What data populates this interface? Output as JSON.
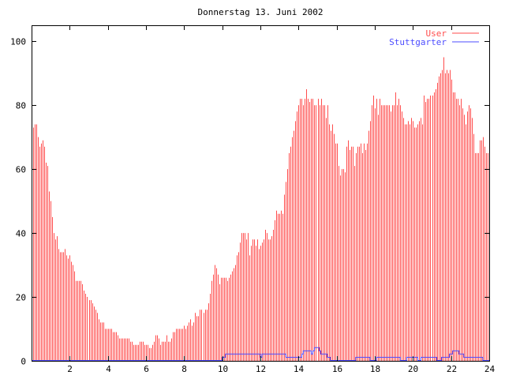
{
  "chart_data": {
    "type": "bar",
    "title": "Donnerstag 13. Juni 2002",
    "xlabel": "",
    "ylabel": "",
    "xlim": [
      0,
      24
    ],
    "ylim": [
      0,
      105
    ],
    "x_step_hours": 0.08333,
    "xticks": [
      2,
      4,
      6,
      8,
      10,
      12,
      14,
      16,
      18,
      20,
      22,
      24
    ],
    "yticks": [
      0,
      20,
      40,
      60,
      80,
      100
    ],
    "legend_position": "top-right",
    "series": [
      {
        "name": "User",
        "style": "impulses",
        "color": "#ff4d4d",
        "values": [
          72,
          73,
          74,
          74,
          70,
          67,
          68,
          69,
          67,
          62,
          61,
          53,
          50,
          45,
          40,
          38,
          39,
          35,
          34,
          34,
          34,
          35,
          33,
          32,
          33,
          31,
          30,
          28,
          25,
          25,
          25,
          25,
          24,
          22,
          21,
          20,
          19,
          19,
          18,
          17,
          16,
          15,
          13,
          12,
          12,
          12,
          10,
          10,
          10,
          10,
          10,
          9,
          9,
          9,
          8,
          7,
          7,
          7,
          7,
          7,
          7,
          7,
          6,
          6,
          5,
          5,
          5,
          5,
          6,
          6,
          6,
          5,
          5,
          5,
          4,
          4,
          5,
          6,
          8,
          8,
          7,
          5,
          6,
          6,
          6,
          8,
          6,
          6,
          7,
          9,
          9,
          10,
          10,
          10,
          10,
          10,
          11,
          10,
          11,
          12,
          13,
          11,
          12,
          15,
          14,
          14,
          16,
          16,
          15,
          16,
          16,
          18,
          21,
          25,
          27,
          30,
          29,
          27,
          24,
          26,
          26,
          26,
          26,
          25,
          26,
          27,
          28,
          29,
          30,
          33,
          34,
          37,
          40,
          40,
          40,
          38,
          40,
          33,
          36,
          38,
          38,
          36,
          38,
          35,
          36,
          37,
          38,
          41,
          40,
          38,
          38,
          39,
          41,
          44,
          47,
          46,
          46,
          47,
          46,
          52,
          56,
          60,
          65,
          67,
          70,
          72,
          75,
          78,
          80,
          82,
          82,
          80,
          82,
          85,
          82,
          81,
          82,
          82,
          80,
          80,
          82,
          80,
          82,
          80,
          80,
          76,
          80,
          74,
          72,
          74,
          71,
          68,
          68,
          61,
          58,
          60,
          60,
          59,
          67,
          69,
          66,
          67,
          67,
          61,
          65,
          67,
          67,
          68,
          65,
          68,
          66,
          68,
          72,
          75,
          80,
          83,
          79,
          82,
          77,
          82,
          80,
          80,
          80,
          80,
          80,
          80,
          78,
          80,
          80,
          84,
          80,
          82,
          80,
          78,
          76,
          74,
          74,
          75,
          74,
          76,
          75,
          73,
          73,
          74,
          75,
          76,
          74,
          83,
          81,
          82,
          82,
          83,
          83,
          84,
          85,
          87,
          89,
          90,
          91,
          95,
          90,
          91,
          90,
          91,
          88,
          84,
          84,
          82,
          82,
          80,
          82,
          79,
          77,
          74,
          78,
          80,
          79,
          76,
          71,
          65,
          65,
          65,
          69,
          69,
          70,
          67,
          65,
          65
        ]
      },
      {
        "name": "Stuttgarter",
        "style": "steps",
        "color": "#4d4dff",
        "values": [
          0,
          0,
          0,
          0,
          0,
          0,
          0,
          0,
          0,
          0,
          0,
          0,
          0,
          0,
          0,
          0,
          0,
          0,
          0,
          0,
          0,
          0,
          0,
          0,
          0,
          0,
          0,
          0,
          0,
          0,
          0,
          0,
          0,
          0,
          0,
          0,
          0,
          0,
          0,
          0,
          0,
          0,
          0,
          0,
          0,
          0,
          0,
          0,
          0,
          0,
          0,
          0,
          0,
          0,
          0,
          0,
          0,
          0,
          0,
          0,
          0,
          0,
          0,
          0,
          0,
          0,
          0,
          0,
          0,
          0,
          0,
          0,
          0,
          0,
          0,
          0,
          0,
          0,
          0,
          0,
          0,
          0,
          0,
          0,
          0,
          0,
          0,
          0,
          0,
          0,
          0,
          0,
          0,
          0,
          0,
          0,
          0,
          0,
          0,
          0,
          0,
          0,
          0,
          0,
          0,
          0,
          0,
          0,
          0,
          0,
          0,
          0,
          0,
          0,
          0,
          0,
          0,
          0,
          0,
          0,
          1,
          1,
          2,
          2,
          2,
          2,
          2,
          2,
          2,
          2,
          2,
          2,
          2,
          2,
          2,
          2,
          2,
          2,
          2,
          2,
          2,
          2,
          2,
          2,
          1,
          2,
          2,
          2,
          2,
          2,
          2,
          2,
          2,
          2,
          2,
          2,
          2,
          2,
          2,
          2,
          1,
          1,
          1,
          1,
          1,
          1,
          1,
          1,
          1,
          1,
          2,
          3,
          3,
          3,
          3,
          3,
          2,
          3,
          4,
          4,
          4,
          3,
          2,
          2,
          2,
          2,
          1,
          1,
          0,
          0,
          0,
          0,
          0,
          0,
          0,
          0,
          0,
          0,
          0,
          0,
          0,
          0,
          0,
          0,
          1,
          1,
          1,
          1,
          1,
          1,
          1,
          1,
          1,
          0,
          0,
          0,
          0,
          1,
          1,
          1,
          1,
          1,
          1,
          1,
          1,
          1,
          1,
          1,
          1,
          1,
          1,
          1,
          0,
          0,
          0,
          0,
          1,
          1,
          1,
          1,
          1,
          1,
          1,
          0,
          0,
          1,
          1,
          1,
          1,
          1,
          1,
          1,
          1,
          1,
          1,
          0,
          0,
          0,
          1,
          1,
          1,
          1,
          1,
          2,
          2,
          3,
          3,
          3,
          3,
          2,
          2,
          2,
          1,
          1,
          1,
          1,
          1,
          1,
          1,
          1,
          1,
          1,
          1,
          1,
          0,
          0,
          0,
          0
        ]
      }
    ]
  }
}
